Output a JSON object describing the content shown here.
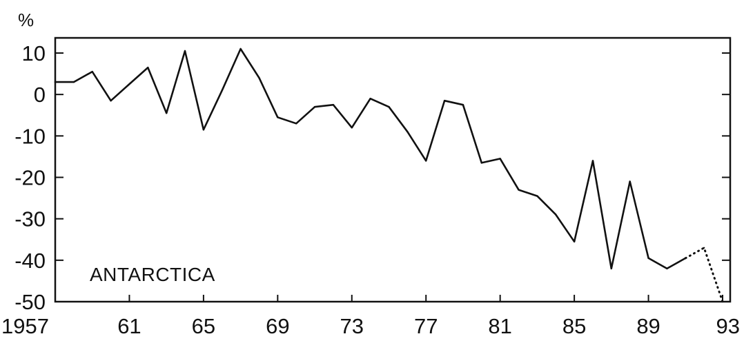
{
  "chart_data": {
    "type": "line",
    "title": "",
    "ylabel": "%",
    "xlabel": "",
    "annotation": "ANTARCTICA",
    "xlim": [
      1957,
      1993
    ],
    "ylim": [
      -50,
      13
    ],
    "x_ticks": [
      1957,
      1961,
      1965,
      1969,
      1973,
      1977,
      1981,
      1985,
      1989,
      1993
    ],
    "x_tick_labels": [
      "1957",
      "61",
      "65",
      "69",
      "73",
      "77",
      "81",
      "85",
      "89",
      "93"
    ],
    "y_ticks": [
      10,
      0,
      -10,
      -20,
      -30,
      -40,
      -50
    ],
    "y_tick_labels": [
      "10",
      "0",
      "-10",
      "-20",
      "-30",
      "-40",
      "-50"
    ],
    "grid": false,
    "series": [
      {
        "style": "solid",
        "color": "#111111",
        "x": [
          1957,
          1958,
          1959,
          1960,
          1961,
          1962,
          1963,
          1964,
          1965,
          1966,
          1967,
          1968,
          1969,
          1970,
          1971,
          1972,
          1973,
          1974,
          1975,
          1976,
          1977,
          1978,
          1979,
          1980,
          1981,
          1982,
          1983,
          1984,
          1985,
          1986,
          1987,
          1988,
          1989,
          1990,
          1991
        ],
        "values": [
          3,
          3,
          5.5,
          -1.5,
          2.5,
          6.5,
          -4.5,
          10.5,
          -8.5,
          1,
          11,
          4,
          -5.5,
          -7,
          -3,
          -2.5,
          -8,
          -1,
          -3,
          -9,
          -16,
          -1.5,
          -2.5,
          -16.5,
          -15.5,
          -23,
          -24.5,
          -29,
          -35.5,
          -16,
          -42,
          -21,
          -39.5,
          -42,
          -39.5
        ]
      },
      {
        "style": "dotted",
        "color": "#111111",
        "x": [
          1991,
          1992,
          1993
        ],
        "values": [
          -39.5,
          -37,
          -50
        ]
      }
    ]
  }
}
